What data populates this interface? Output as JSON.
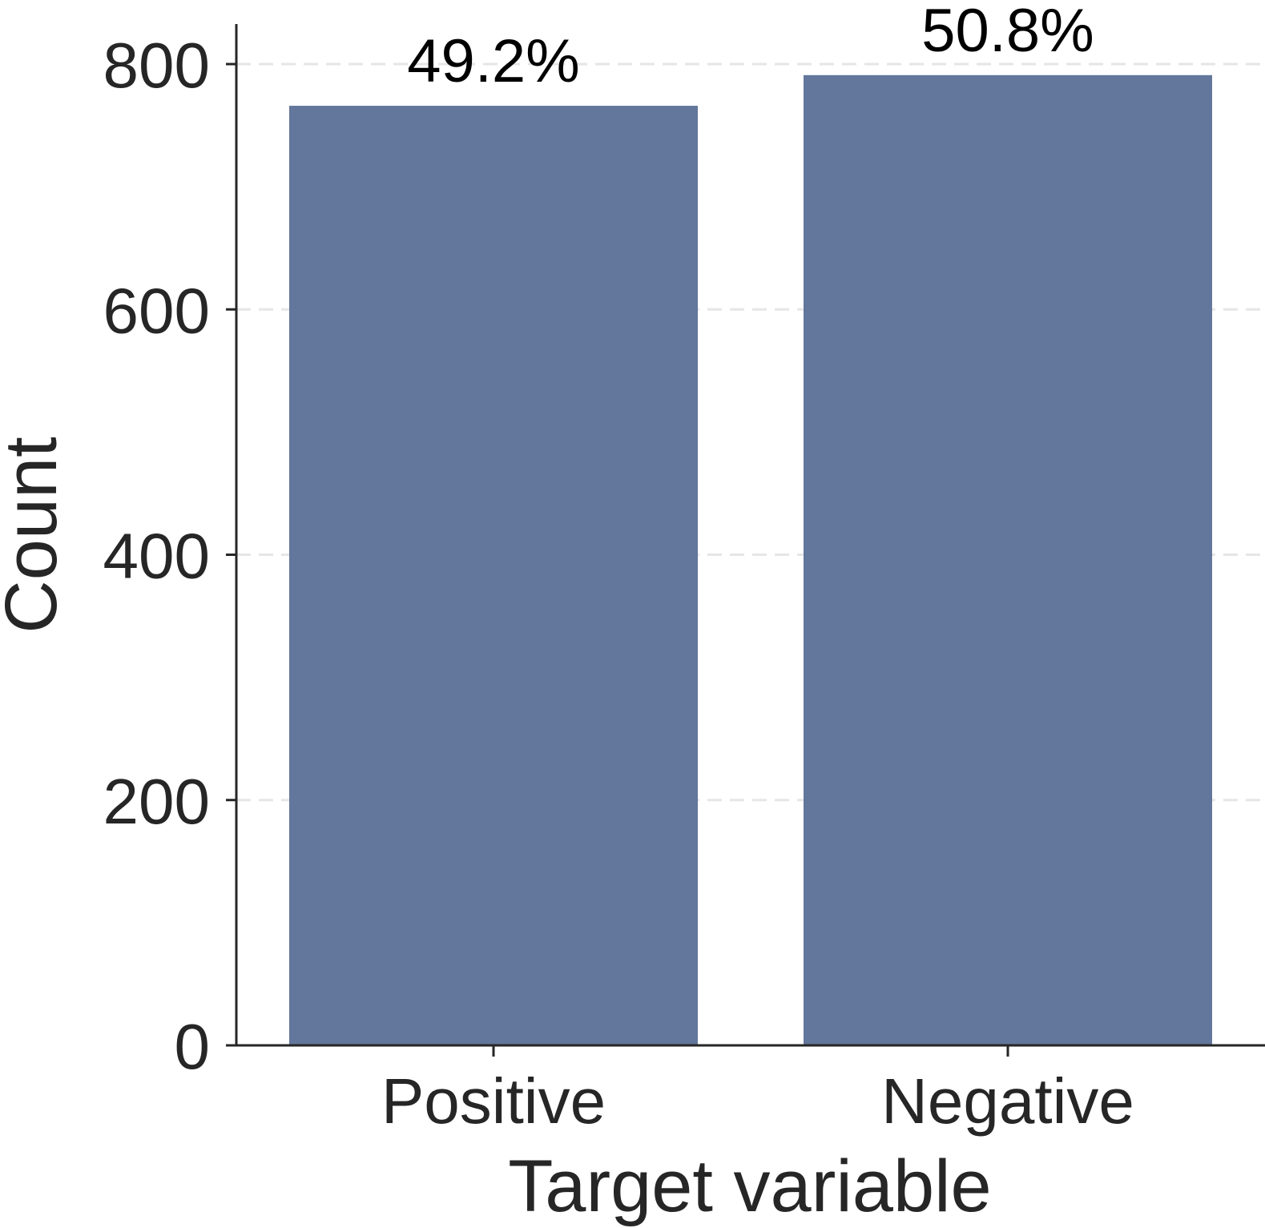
{
  "chart_data": {
    "type": "bar",
    "categories": [
      "Positive",
      "Negative"
    ],
    "values": [
      766,
      791
    ],
    "data_labels": [
      "49.2%",
      "50.8%"
    ],
    "title": "",
    "xlabel": "Target variable",
    "ylabel": "Count",
    "ylim": [
      0,
      800
    ],
    "yticks": [
      0,
      200,
      400,
      600,
      800
    ],
    "ytick_labels": [
      "0",
      "200",
      "400",
      "600",
      "800"
    ],
    "grid": "y dashed",
    "legend": "none",
    "colors": {
      "bar": "#63769b",
      "axis": "#262626",
      "grid": "#e6e6e6",
      "text": "#262626"
    }
  }
}
